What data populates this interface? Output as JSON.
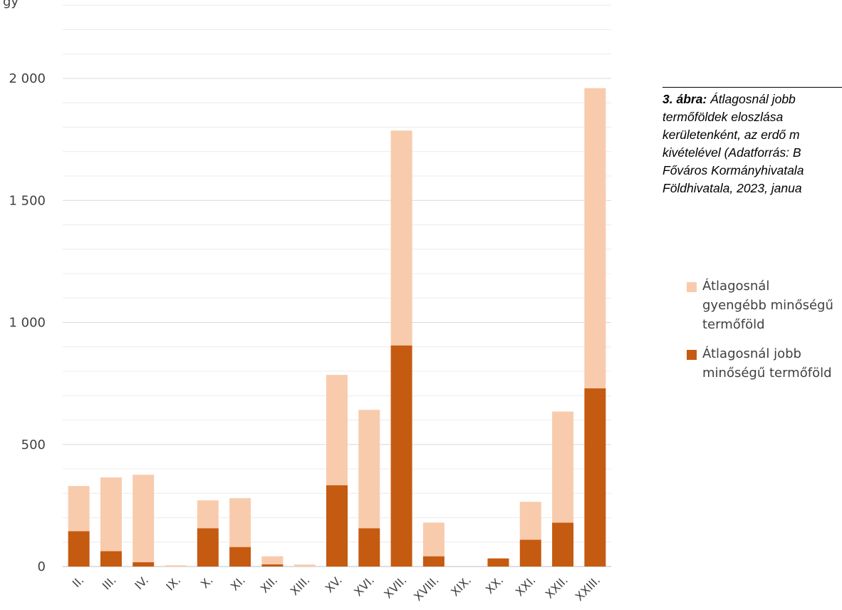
{
  "chart_data": {
    "type": "bar",
    "stacked": true,
    "y_unit_label": "gy",
    "categories": [
      "II.",
      "III.",
      "IV.",
      "IX.",
      "X.",
      "XI.",
      "XII.",
      "XIII.",
      "XV.",
      "XVI.",
      "XVII.",
      "XVIII.",
      "XIX.",
      "XX.",
      "XXI.",
      "XXII.",
      "XXIII."
    ],
    "series": [
      {
        "name": "Átlagosnál jobb minőségű termőföld",
        "color": "#c55a11",
        "values": [
          145,
          63,
          18,
          0,
          157,
          80,
          9,
          0,
          333,
          157,
          906,
          42,
          0,
          33,
          110,
          180,
          730
        ]
      },
      {
        "name": "Átlagosnál gyengébb minőségű termőföld",
        "color": "#f8cbad",
        "values": [
          185,
          302,
          358,
          5,
          114,
          200,
          33,
          8,
          452,
          485,
          880,
          138,
          0,
          2,
          155,
          455,
          1230
        ]
      }
    ],
    "yticks": [
      "0",
      "500",
      "1 000",
      "1 500",
      "2 000"
    ],
    "ytick_values": [
      0,
      500,
      1000,
      1500,
      2000
    ],
    "ylim": [
      0,
      2300
    ],
    "grid": true,
    "legend_position": "right"
  },
  "caption": {
    "lead": "3. ábra:",
    "rest_line1": " Átlagosnál jobb",
    "line2": "termőföldek eloszlása",
    "line3": "kerületenként, az erdő m",
    "line4": "kivételével (Adatforrás: B",
    "line5": "Főváros Kormányhivatala",
    "line6": "Földhivatala, 2023, janua"
  },
  "legend": {
    "items": [
      {
        "label_line1": "Átlagosnál",
        "label_line2": "gyengébb minőségű",
        "label_line3": "termőföld",
        "color": "#f8cbad"
      },
      {
        "label_line1": "Átlagosnál jobb",
        "label_line2": "minőségű termőföld",
        "color": "#c55a11"
      }
    ]
  }
}
